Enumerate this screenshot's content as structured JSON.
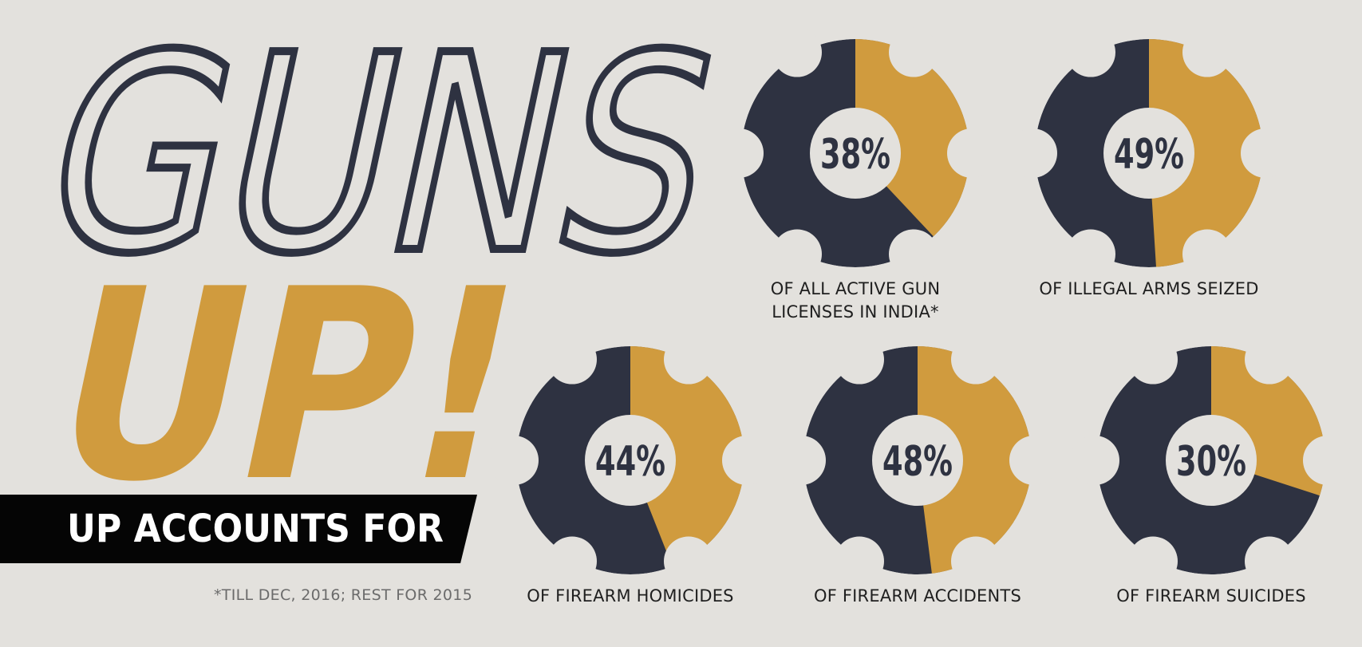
{
  "headline": {
    "line1": "GUNS",
    "line2": "UP!",
    "banner": "UP ACCOUNTS FOR",
    "footnote": "*TILL DEC, 2016; REST FOR 2015"
  },
  "colors": {
    "background": "#e3e1dd",
    "dark": "#2e3241",
    "gold": "#d09b3e",
    "banner": "#050505"
  },
  "chart_data": {
    "type": "pie",
    "items": [
      {
        "value": 38,
        "label": "38%",
        "caption": [
          "OF ALL ACTIVE GUN",
          "LICENSES IN INDIA*"
        ]
      },
      {
        "value": 49,
        "label": "49%",
        "caption": [
          "OF ILLEGAL ARMS SEIZED"
        ]
      },
      {
        "value": 44,
        "label": "44%",
        "caption": [
          "OF FIREARM HOMICIDES"
        ]
      },
      {
        "value": 48,
        "label": "48%",
        "caption": [
          "OF FIREARM ACCIDENTS"
        ]
      },
      {
        "value": 30,
        "label": "30%",
        "caption": [
          "OF FIREARM SUICIDES"
        ]
      }
    ]
  }
}
